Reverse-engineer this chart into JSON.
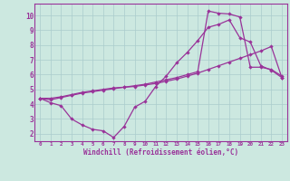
{
  "background_color": "#cce8e0",
  "grid_color": "#aacccc",
  "line_color": "#993399",
  "marker_color": "#993399",
  "xlabel": "Windchill (Refroidissement éolien,°C)",
  "xlim": [
    -0.5,
    23.5
  ],
  "ylim": [
    1.5,
    10.8
  ],
  "xticks": [
    0,
    1,
    2,
    3,
    4,
    5,
    6,
    7,
    8,
    9,
    10,
    11,
    12,
    13,
    14,
    15,
    16,
    17,
    18,
    19,
    20,
    21,
    22,
    23
  ],
  "yticks": [
    2,
    3,
    4,
    5,
    6,
    7,
    8,
    9,
    10
  ],
  "line1_x": [
    0,
    1,
    2,
    3,
    4,
    5,
    6,
    7,
    8,
    9,
    10,
    11,
    12,
    13,
    14,
    15,
    16,
    17,
    18,
    19,
    20,
    21,
    22,
    23
  ],
  "line1_y": [
    4.4,
    4.1,
    3.9,
    3.0,
    2.6,
    2.3,
    2.2,
    1.75,
    2.5,
    3.8,
    4.2,
    5.2,
    5.9,
    6.8,
    7.5,
    8.3,
    9.2,
    9.4,
    9.7,
    8.5,
    8.2,
    6.6,
    6.3,
    5.8
  ],
  "line2_x": [
    0,
    1,
    2,
    3,
    4,
    5,
    6,
    7,
    8,
    9,
    10,
    11,
    12,
    13,
    14,
    15,
    16,
    17,
    18,
    19,
    20,
    21,
    22,
    23
  ],
  "line2_y": [
    4.4,
    4.4,
    4.5,
    4.65,
    4.8,
    4.9,
    5.0,
    5.1,
    5.15,
    5.2,
    5.3,
    5.4,
    5.55,
    5.7,
    5.9,
    6.1,
    6.35,
    6.6,
    6.85,
    7.1,
    7.35,
    7.6,
    7.9,
    5.8
  ],
  "line3_x": [
    0,
    1,
    2,
    3,
    4,
    5,
    6,
    7,
    8,
    9,
    10,
    11,
    12,
    13,
    14,
    15,
    16,
    17,
    18,
    19,
    20,
    21,
    22,
    23
  ],
  "line3_y": [
    4.4,
    4.3,
    4.45,
    4.6,
    4.75,
    4.85,
    4.95,
    5.05,
    5.15,
    5.25,
    5.35,
    5.5,
    5.65,
    5.8,
    6.0,
    6.2,
    10.3,
    10.15,
    10.1,
    9.9,
    6.5,
    6.5,
    6.35,
    5.9
  ]
}
